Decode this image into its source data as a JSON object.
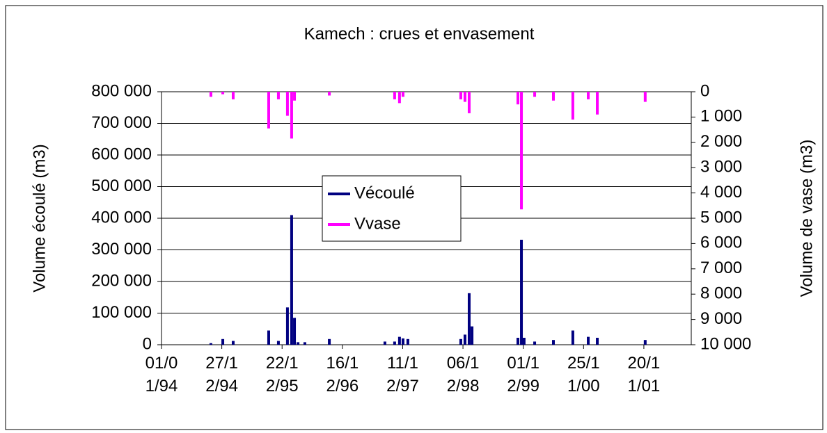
{
  "chart_data": {
    "type": "bar",
    "title": "Kamech : crues et envasement",
    "y_label": "Volume écoulé (m3)",
    "y2_label": "Volume de vase (m3)",
    "x": [
      "23/10/94",
      "02/01/95",
      "05/03/95",
      "03/10/95",
      "30/11/95",
      "23/01/96",
      "17/02/96",
      "05/03/96",
      "26/03/96",
      "06/05/96",
      "29/09/96",
      "27/08/97",
      "24/10/97",
      "22/11/97",
      "13/12/97",
      "11/01/98",
      "23/11/98",
      "18/12/98",
      "12/01/99",
      "29/01/99",
      "30/10/99",
      "20/11/99",
      "06/12/99",
      "07/02/00",
      "29/05/00",
      "22/09/00",
      "23/12/00",
      "15/02/01",
      "28/11/01"
    ],
    "series": [
      {
        "name": "Vécoulé",
        "color": "#000080",
        "values": [
          5000,
          18000,
          12000,
          45000,
          12000,
          118000,
          410000,
          85000,
          8000,
          8000,
          18000,
          10000,
          10000,
          25000,
          20000,
          18000,
          18000,
          32000,
          163000,
          58000,
          22000,
          332000,
          22000,
          10000,
          15000,
          45000,
          25000,
          22000,
          15000
        ]
      },
      {
        "name": "Vvase",
        "color": "#ff00ff",
        "axis": "y2",
        "values": [
          200,
          100,
          300,
          1450,
          300,
          950,
          1850,
          350,
          null,
          null,
          150,
          null,
          300,
          450,
          200,
          null,
          300,
          400,
          850,
          null,
          500,
          4650,
          null,
          200,
          350,
          1100,
          300,
          900,
          400
        ]
      }
    ],
    "xlim": [
      "01/01/94",
      "30/08/02"
    ],
    "xticks": [
      "01/01/94",
      "27/12/94",
      "22/12/95",
      "16/12/96",
      "11/12/97",
      "06/12/98",
      "01/12/99",
      "25/11/00",
      "20/11/01"
    ],
    "ylim": [
      0,
      800000
    ],
    "yticks": [
      0,
      {
        "value": 100000,
        "label": "100 000"
      },
      {
        "value": 200000,
        "label": "200 000"
      },
      {
        "value": 300000,
        "label": "300 000"
      },
      {
        "value": 400000,
        "label": "400 000"
      },
      {
        "value": 500000,
        "label": "500 000"
      },
      {
        "value": 600000,
        "label": "600 000"
      },
      {
        "value": 700000,
        "label": "700 000"
      },
      {
        "value": 800000,
        "label": "800 000"
      }
    ],
    "y2lim": [
      10000,
      0
    ],
    "y2ticks": [
      0,
      {
        "value": 1000,
        "label": "1 000"
      },
      {
        "value": 2000,
        "label": "2 000"
      },
      {
        "value": 3000,
        "label": "3 000"
      },
      {
        "value": 4000,
        "label": "4 000"
      },
      {
        "value": 5000,
        "label": "5 000"
      },
      {
        "value": 6000,
        "label": "6 000"
      },
      {
        "value": 7000,
        "label": "7 000"
      },
      {
        "value": 8000,
        "label": "8 000"
      },
      {
        "value": 9000,
        "label": "9 000"
      },
      {
        "value": 10000,
        "label": "10 000"
      }
    ],
    "grid": true,
    "legend": "center"
  }
}
